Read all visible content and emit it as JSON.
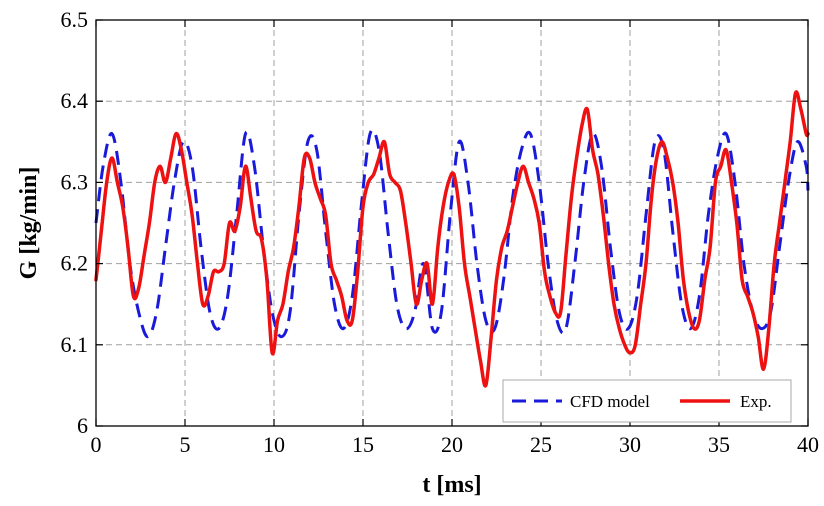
{
  "chart_data": {
    "type": "line",
    "xlabel": "t [ms]",
    "ylabel": "G [kg/min]",
    "xlim": [
      0,
      40
    ],
    "ylim": [
      6.0,
      6.5
    ],
    "x_ticks": [
      0,
      5,
      10,
      15,
      20,
      25,
      30,
      35,
      40
    ],
    "x_tick_labels": [
      "0",
      "5",
      "10",
      "15",
      "20",
      "25",
      "30",
      "35",
      "40"
    ],
    "y_ticks": [
      6.0,
      6.1,
      6.2,
      6.3,
      6.4,
      6.5
    ],
    "y_tick_labels": [
      "6",
      "6.1",
      "6.2",
      "6.3",
      "6.4",
      "6.5"
    ],
    "grid": true,
    "legend_position": "bottom-right",
    "series": [
      {
        "name": "CFD model",
        "color": "#1a1adb",
        "line_style": "dashed",
        "x": [
          0,
          0.4,
          0.9,
          1.4,
          1.9,
          2.4,
          2.9,
          3.4,
          3.9,
          4.4,
          4.9,
          5.4,
          5.9,
          6.4,
          6.9,
          7.4,
          7.9,
          8.4,
          8.9,
          9.4,
          9.9,
          10.4,
          10.9,
          11.4,
          11.9,
          12.4,
          12.9,
          13.4,
          13.9,
          14.4,
          14.9,
          15.4,
          15.9,
          16.4,
          16.9,
          17.4,
          17.9,
          18.4,
          18.9,
          19.4,
          19.9,
          20.4,
          20.9,
          21.4,
          21.9,
          22.4,
          22.9,
          23.4,
          23.9,
          24.4,
          24.9,
          25.4,
          25.9,
          26.4,
          26.9,
          27.4,
          27.9,
          28.4,
          28.9,
          29.4,
          29.9,
          30.4,
          30.9,
          31.4,
          31.9,
          32.4,
          32.9,
          33.4,
          33.9,
          34.4,
          34.9,
          35.4,
          35.9,
          36.4,
          36.9,
          37.4,
          37.9,
          38.4,
          38.9,
          39.4,
          39.9,
          40
        ],
        "values": [
          6.25,
          6.32,
          6.36,
          6.3,
          6.2,
          6.14,
          6.11,
          6.14,
          6.22,
          6.3,
          6.35,
          6.32,
          6.22,
          6.14,
          6.12,
          6.16,
          6.26,
          6.36,
          6.32,
          6.22,
          6.14,
          6.11,
          6.14,
          6.26,
          6.35,
          6.34,
          6.24,
          6.15,
          6.12,
          6.16,
          6.27,
          6.36,
          6.34,
          6.24,
          6.15,
          6.12,
          6.14,
          6.2,
          6.12,
          6.14,
          6.26,
          6.35,
          6.3,
          6.2,
          6.13,
          6.12,
          6.18,
          6.28,
          6.34,
          6.36,
          6.3,
          6.2,
          6.13,
          6.12,
          6.2,
          6.3,
          6.36,
          6.32,
          6.22,
          6.14,
          6.12,
          6.16,
          6.26,
          6.35,
          6.34,
          6.24,
          6.15,
          6.12,
          6.16,
          6.26,
          6.33,
          6.36,
          6.3,
          6.2,
          6.14,
          6.12,
          6.14,
          6.22,
          6.3,
          6.35,
          6.32,
          6.29
        ]
      },
      {
        "name": "Exp.",
        "color": "#ee1111",
        "line_style": "solid",
        "x": [
          0,
          0.3,
          0.6,
          0.9,
          1.2,
          1.5,
          1.8,
          2.1,
          2.4,
          2.7,
          3.0,
          3.3,
          3.6,
          3.9,
          4.2,
          4.5,
          4.8,
          5.1,
          5.4,
          5.7,
          6.0,
          6.3,
          6.6,
          6.9,
          7.2,
          7.5,
          7.8,
          8.1,
          8.4,
          8.7,
          9.0,
          9.3,
          9.6,
          9.9,
          10.2,
          10.5,
          10.8,
          11.1,
          11.4,
          11.7,
          12.0,
          12.3,
          12.6,
          12.9,
          13.2,
          13.5,
          13.8,
          14.1,
          14.4,
          14.7,
          15.0,
          15.3,
          15.6,
          15.9,
          16.2,
          16.5,
          16.8,
          17.1,
          17.4,
          17.7,
          18.0,
          18.3,
          18.6,
          18.9,
          19.2,
          19.5,
          19.8,
          20.1,
          20.4,
          20.7,
          21.0,
          21.3,
          21.6,
          21.9,
          22.2,
          22.5,
          22.8,
          23.1,
          23.4,
          23.7,
          24.0,
          24.3,
          24.6,
          24.9,
          25.2,
          25.5,
          25.8,
          26.1,
          26.4,
          26.7,
          27.0,
          27.3,
          27.6,
          27.9,
          28.2,
          28.5,
          28.8,
          29.1,
          29.4,
          29.7,
          30.0,
          30.3,
          30.6,
          30.9,
          31.2,
          31.5,
          31.8,
          32.1,
          32.4,
          32.7,
          33.0,
          33.3,
          33.6,
          33.9,
          34.2,
          34.5,
          34.8,
          35.1,
          35.4,
          35.7,
          36.0,
          36.3,
          36.6,
          36.9,
          37.2,
          37.5,
          37.8,
          38.1,
          38.4,
          38.7,
          39.0,
          39.3,
          39.6,
          39.9,
          40
        ],
        "values": [
          6.18,
          6.24,
          6.3,
          6.33,
          6.3,
          6.27,
          6.22,
          6.16,
          6.17,
          6.21,
          6.25,
          6.3,
          6.32,
          6.3,
          6.33,
          6.36,
          6.34,
          6.3,
          6.26,
          6.2,
          6.15,
          6.16,
          6.19,
          6.19,
          6.2,
          6.25,
          6.24,
          6.27,
          6.32,
          6.28,
          6.24,
          6.23,
          6.18,
          6.09,
          6.13,
          6.15,
          6.19,
          6.22,
          6.27,
          6.33,
          6.33,
          6.3,
          6.28,
          6.26,
          6.2,
          6.18,
          6.16,
          6.13,
          6.13,
          6.19,
          6.27,
          6.3,
          6.31,
          6.33,
          6.35,
          6.31,
          6.3,
          6.29,
          6.25,
          6.2,
          6.15,
          6.18,
          6.2,
          6.15,
          6.22,
          6.27,
          6.3,
          6.31,
          6.27,
          6.2,
          6.16,
          6.12,
          6.08,
          6.05,
          6.11,
          6.18,
          6.22,
          6.24,
          6.27,
          6.3,
          6.32,
          6.3,
          6.28,
          6.25,
          6.19,
          6.16,
          6.14,
          6.14,
          6.21,
          6.28,
          6.33,
          6.37,
          6.39,
          6.34,
          6.31,
          6.26,
          6.2,
          6.15,
          6.12,
          6.1,
          6.09,
          6.1,
          6.15,
          6.2,
          6.28,
          6.33,
          6.35,
          6.33,
          6.3,
          6.25,
          6.18,
          6.14,
          6.12,
          6.13,
          6.18,
          6.22,
          6.3,
          6.32,
          6.34,
          6.3,
          6.25,
          6.18,
          6.16,
          6.14,
          6.11,
          6.07,
          6.12,
          6.2,
          6.25,
          6.3,
          6.35,
          6.41,
          6.39,
          6.36,
          6.36
        ]
      }
    ]
  }
}
